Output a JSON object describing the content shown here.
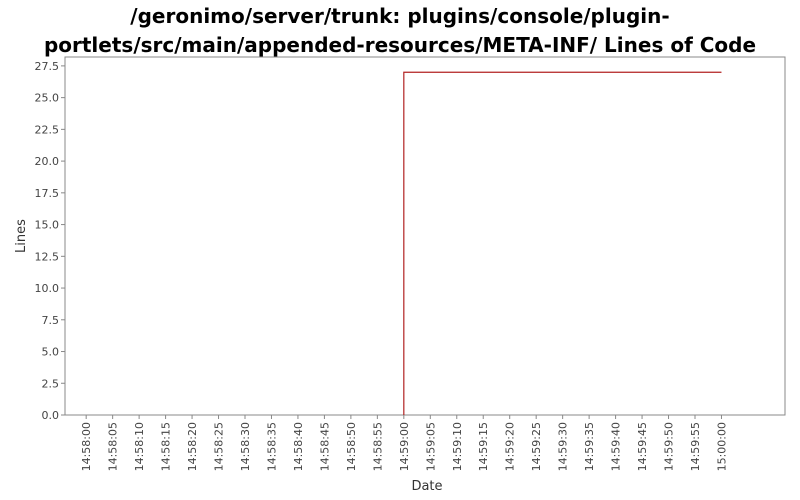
{
  "chart_data": {
    "type": "line",
    "title_lines": [
      "/geronimo/server/trunk: plugins/console/plugin-",
      "portlets/src/main/appended-resources/META-INF/ Lines of Code"
    ],
    "xlabel": "Date",
    "ylabel": "Lines",
    "ylim": [
      0,
      28.2
    ],
    "yticks": [
      0.0,
      2.5,
      5.0,
      7.5,
      10.0,
      12.5,
      15.0,
      17.5,
      20.0,
      22.5,
      25.0,
      27.5
    ],
    "xlim": [
      "14:57:56",
      "15:00:12"
    ],
    "xticks": [
      "14:58:00",
      "14:58:05",
      "14:58:10",
      "14:58:15",
      "14:58:20",
      "14:58:25",
      "14:58:30",
      "14:58:35",
      "14:58:40",
      "14:58:45",
      "14:58:50",
      "14:58:55",
      "14:59:00",
      "14:59:05",
      "14:59:10",
      "14:59:15",
      "14:59:20",
      "14:59:25",
      "14:59:30",
      "14:59:35",
      "14:59:40",
      "14:59:45",
      "14:59:50",
      "14:59:55",
      "15:00:00"
    ],
    "grid": false,
    "series": [
      {
        "color": "#b22222",
        "step": true,
        "points": [
          {
            "x": "14:59:00",
            "y": 0
          },
          {
            "x": "14:59:00",
            "y": 27
          },
          {
            "x": "15:00:00",
            "y": 27
          }
        ]
      }
    ]
  }
}
